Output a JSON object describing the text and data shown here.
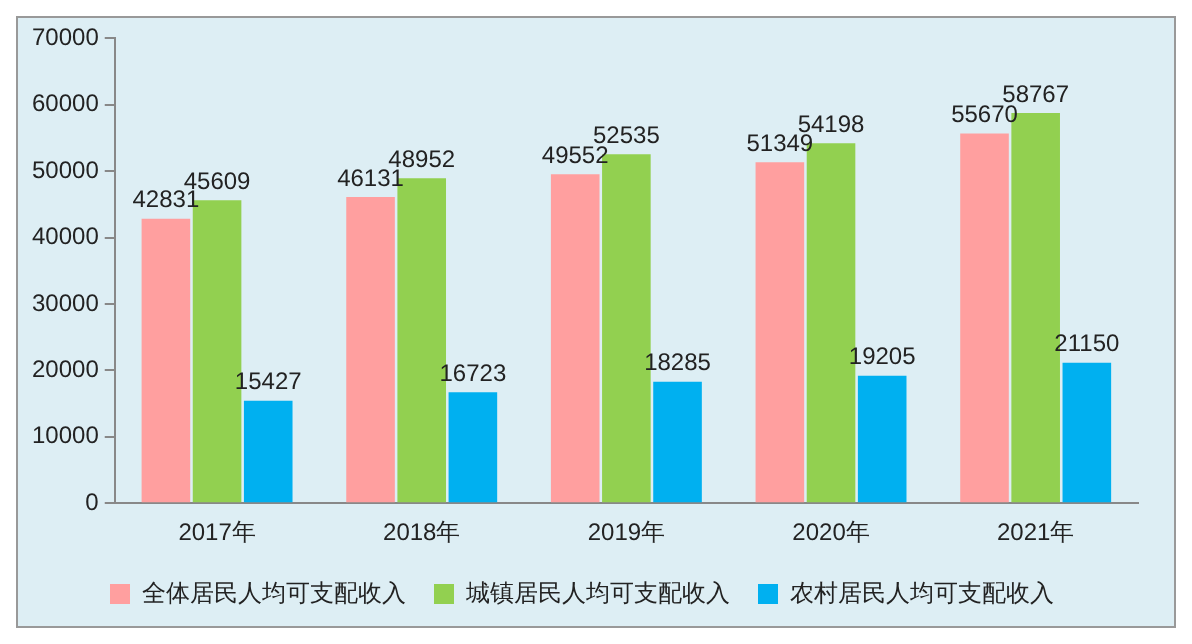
{
  "chart_data": {
    "type": "bar",
    "categories": [
      "2017年",
      "2018年",
      "2019年",
      "2020年",
      "2021年"
    ],
    "series": [
      {
        "name": "全体居民人均可支配收入",
        "color": "#ff9f9f",
        "values": [
          42831,
          46131,
          49552,
          51349,
          55670
        ]
      },
      {
        "name": "城镇居民人均可支配收入",
        "color": "#92d050",
        "values": [
          45609,
          48952,
          52535,
          54198,
          58767
        ]
      },
      {
        "name": "农村居民人均可支配收入",
        "color": "#00b0f0",
        "values": [
          15427,
          16723,
          18285,
          19205,
          21150
        ]
      }
    ],
    "ylim": [
      0,
      70000
    ],
    "yticks": [
      0,
      10000,
      20000,
      30000,
      40000,
      50000,
      60000,
      70000
    ],
    "grid": false,
    "legend": "bottom",
    "data_labels": true
  }
}
